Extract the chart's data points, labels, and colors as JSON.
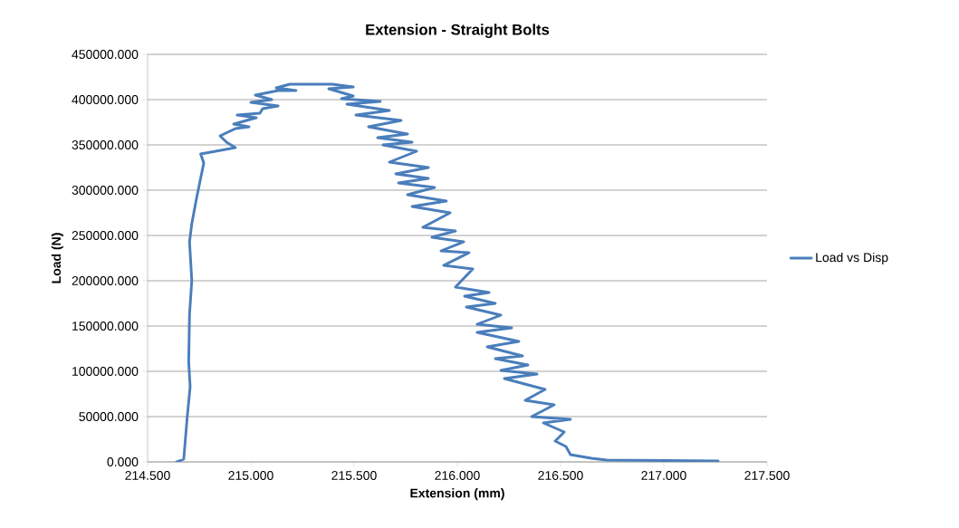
{
  "chart_data": {
    "type": "line",
    "title": "Extension - Straight Bolts",
    "xlabel": "Extension (mm)",
    "ylabel": "Load (N)",
    "xlim": [
      214.5,
      217.5
    ],
    "ylim": [
      0,
      450000
    ],
    "xticks": [
      {
        "value": 214.5,
        "label": "214.500"
      },
      {
        "value": 215,
        "label": "215.000"
      },
      {
        "value": 215.5,
        "label": "215.500"
      },
      {
        "value": 216,
        "label": "216.000"
      },
      {
        "value": 216.5,
        "label": "216.500"
      },
      {
        "value": 217,
        "label": "217.000"
      },
      {
        "value": 217.5,
        "label": "217.500"
      }
    ],
    "yticks": [
      {
        "value": 0,
        "label": "0.000"
      },
      {
        "value": 50000,
        "label": "50000.000"
      },
      {
        "value": 100000,
        "label": "100000.000"
      },
      {
        "value": 150000,
        "label": "150000.000"
      },
      {
        "value": 200000,
        "label": "200000.000"
      },
      {
        "value": 250000,
        "label": "250000.000"
      },
      {
        "value": 300000,
        "label": "300000.000"
      },
      {
        "value": 350000,
        "label": "350000.000"
      },
      {
        "value": 400000,
        "label": "400000.000"
      },
      {
        "value": 450000,
        "label": "450000.000"
      }
    ],
    "grid": "y",
    "legend": "right",
    "marker": "none",
    "line_style": "solid",
    "series": [
      {
        "name": "Load vs Disp",
        "color": "#4a7ebb",
        "x": [
          214.64,
          214.675,
          214.692,
          214.706,
          214.699,
          214.703,
          214.714,
          214.703,
          214.714,
          214.736,
          214.772,
          214.757,
          214.925,
          214.882,
          214.851,
          214.925,
          214.991,
          214.917,
          215.026,
          214.934,
          215.044,
          215.057,
          215.132,
          215.0,
          215.101,
          215.022,
          215.132,
          215.219,
          215.123,
          215.189,
          215.395,
          215.496,
          215.377,
          215.496,
          215.439,
          215.627,
          215.465,
          215.671,
          215.509,
          215.728,
          215.57,
          215.759,
          215.614,
          215.781,
          215.64,
          215.803,
          215.671,
          215.86,
          215.702,
          215.86,
          215.715,
          215.89,
          215.759,
          215.947,
          215.781,
          215.965,
          215.833,
          215.991,
          215.877,
          216.031,
          215.921,
          216.057,
          215.934,
          216.075,
          215.991,
          216.154,
          216.035,
          216.184,
          216.044,
          216.211,
          216.096,
          216.263,
          216.096,
          216.298,
          216.145,
          216.316,
          216.184,
          216.342,
          216.211,
          216.386,
          216.228,
          216.425,
          216.329,
          216.469,
          216.36,
          216.548,
          216.417,
          216.518,
          216.474,
          216.526,
          216.548,
          216.649,
          216.724,
          217.263
        ],
        "values": [
          0,
          3000,
          50000,
          83000,
          110000,
          163000,
          200000,
          243000,
          263000,
          290000,
          330000,
          340000,
          347000,
          353000,
          360000,
          368000,
          370000,
          373000,
          380000,
          383000,
          385000,
          390000,
          393000,
          397000,
          400000,
          405000,
          410000,
          410000,
          413000,
          417000,
          417000,
          414000,
          412000,
          404000,
          401000,
          398000,
          395000,
          388000,
          383000,
          377000,
          370000,
          362000,
          358000,
          353000,
          350000,
          343000,
          331000,
          325000,
          318000,
          313000,
          308000,
          303000,
          295000,
          288000,
          282000,
          275000,
          259000,
          255000,
          248000,
          243000,
          233000,
          231000,
          217000,
          213000,
          193000,
          187000,
          183000,
          175000,
          171000,
          162000,
          152000,
          148000,
          143000,
          133000,
          127000,
          117000,
          114000,
          107000,
          101000,
          97000,
          92000,
          80000,
          68000,
          63000,
          50000,
          47000,
          43000,
          33000,
          23000,
          17000,
          8000,
          4000,
          2000,
          1000
        ]
      }
    ]
  }
}
